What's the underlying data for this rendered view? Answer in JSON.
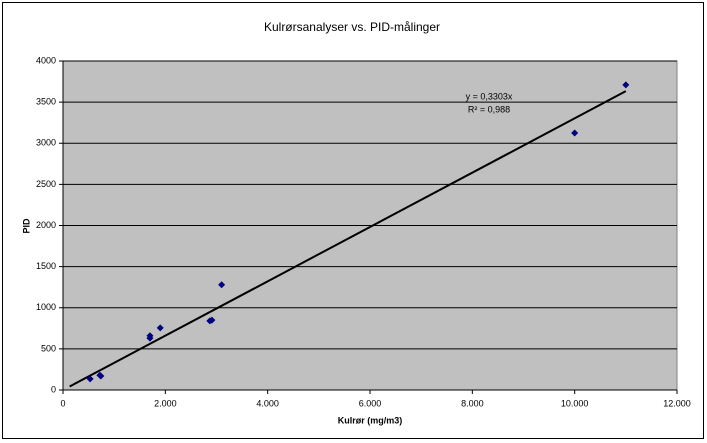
{
  "chart_data": {
    "type": "scatter",
    "title": "Kulrørsanalyser vs. PID-målinger",
    "x_label": "Kulrør (mg/m3)",
    "y_label": "PID",
    "series": [
      {
        "color": "#000080",
        "x": [
          530,
          720,
          740,
          1700,
          1700,
          1900,
          2870,
          2910,
          3100,
          10000,
          11000
        ],
        "values": [
          135,
          180,
          170,
          630,
          660,
          755,
          840,
          850,
          1280,
          3125,
          3710
        ]
      }
    ],
    "trendline": {
      "x": [
        130,
        11000
      ],
      "slope": 0.3303,
      "color": "#000000",
      "equation": "y = 0,3303x",
      "r2": "R² = 0,988"
    },
    "xlim": [
      0,
      12000
    ],
    "xticks": [
      0,
      {
        "value": 2000,
        "label": "2.000"
      },
      {
        "value": 4000,
        "label": "4.000"
      },
      {
        "value": 6000,
        "label": "6.000"
      },
      {
        "value": 8000,
        "label": "8.000"
      },
      {
        "value": 10000,
        "label": "10.000"
      },
      {
        "value": 12000,
        "label": "12.000"
      }
    ],
    "ylim": [
      0,
      4000
    ],
    "yticks": [
      0,
      500,
      1000,
      1500,
      2000,
      2500,
      3000,
      3500,
      4000
    ],
    "grid": true,
    "plot_background": "#c0c0c0"
  }
}
